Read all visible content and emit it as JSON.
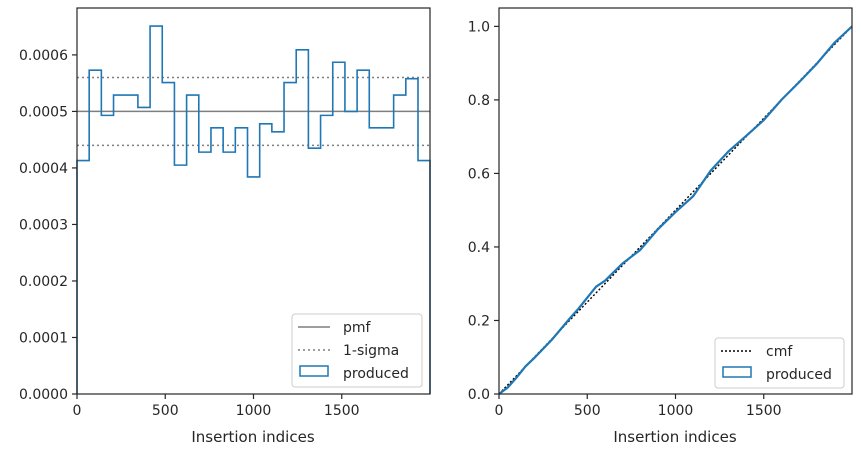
{
  "chart_data": [
    {
      "type": "step",
      "xlabel": "Insertion indices",
      "ylabel": "",
      "xlim": [
        0,
        2000
      ],
      "ylim": [
        0,
        0.000683
      ],
      "xticks": [
        0,
        500,
        1000,
        1500
      ],
      "xtick_labels": [
        "0",
        "500",
        "1000",
        "1500"
      ],
      "yticks": [
        0,
        0.0001,
        0.0002,
        0.0003,
        0.0004,
        0.0005,
        0.0006
      ],
      "ytick_labels": [
        "0.0000",
        "0.0001",
        "0.0002",
        "0.0003",
        "0.0004",
        "0.0005",
        "0.0006"
      ],
      "grid": false,
      "legend_position": "bottom-right",
      "bin_edges": [
        0,
        69,
        138,
        207,
        276,
        345,
        414,
        483,
        552,
        621,
        690,
        759,
        828,
        897,
        966,
        1035,
        1104,
        1173,
        1242,
        1311,
        1380,
        1449,
        1518,
        1587,
        1656,
        1725,
        1794,
        1863,
        1932,
        2000
      ],
      "series": [
        {
          "name": "produced",
          "kind": "histogram",
          "color": "#1f77b4",
          "values": [
            0.000413,
            0.000573,
            0.000493,
            0.000529,
            0.000529,
            0.000507,
            0.000651,
            0.000551,
            0.000405,
            0.000529,
            0.000428,
            0.000471,
            0.000428,
            0.000471,
            0.000384,
            0.000478,
            0.000464,
            0.000551,
            0.000609,
            0.000435,
            0.000493,
            0.000587,
            0.0005,
            0.000573,
            0.000471,
            0.000471,
            0.000529,
            0.000558,
            0.000413
          ]
        }
      ],
      "reference_lines": [
        {
          "name": "pmf",
          "value": 0.0005,
          "color": "#7f7f7f",
          "style": "solid"
        },
        {
          "name": "1-sigma",
          "values": [
            0.00044,
            0.00056
          ],
          "color": "#7f7f7f",
          "style": "dotted"
        }
      ],
      "legend": [
        "pmf",
        "1-sigma",
        "produced"
      ]
    },
    {
      "type": "step",
      "xlabel": "Insertion indices",
      "ylabel": "",
      "xlim": [
        0,
        2000
      ],
      "ylim": [
        0,
        1.05
      ],
      "xticks": [
        0,
        500,
        1000,
        1500
      ],
      "xtick_labels": [
        "0",
        "500",
        "1000",
        "1500"
      ],
      "yticks": [
        0.0,
        0.2,
        0.4,
        0.6,
        0.8,
        1.0
      ],
      "ytick_labels": [
        "0.0",
        "0.2",
        "0.4",
        "0.6",
        "0.8",
        "1.0"
      ],
      "grid": false,
      "legend_position": "bottom-right",
      "series": [
        {
          "name": "cmf",
          "color": "#000000",
          "style": "dotted",
          "x": [
            0,
            2000
          ],
          "y": [
            0,
            1
          ]
        },
        {
          "name": "produced",
          "kind": "cumulative histogram",
          "color": "#1f77b4",
          "x": [
            0,
            50,
            100,
            150,
            200,
            300,
            400,
            450,
            500,
            550,
            600,
            700,
            800,
            900,
            1000,
            1100,
            1200,
            1300,
            1400,
            1500,
            1600,
            1700,
            1800,
            1900,
            2000
          ],
          "y": [
            0,
            0.018,
            0.045,
            0.075,
            0.098,
            0.148,
            0.205,
            0.232,
            0.262,
            0.292,
            0.308,
            0.355,
            0.392,
            0.448,
            0.495,
            0.538,
            0.608,
            0.66,
            0.702,
            0.745,
            0.8,
            0.848,
            0.898,
            0.955,
            1.0
          ]
        }
      ],
      "legend": [
        "cmf",
        "produced"
      ]
    }
  ]
}
